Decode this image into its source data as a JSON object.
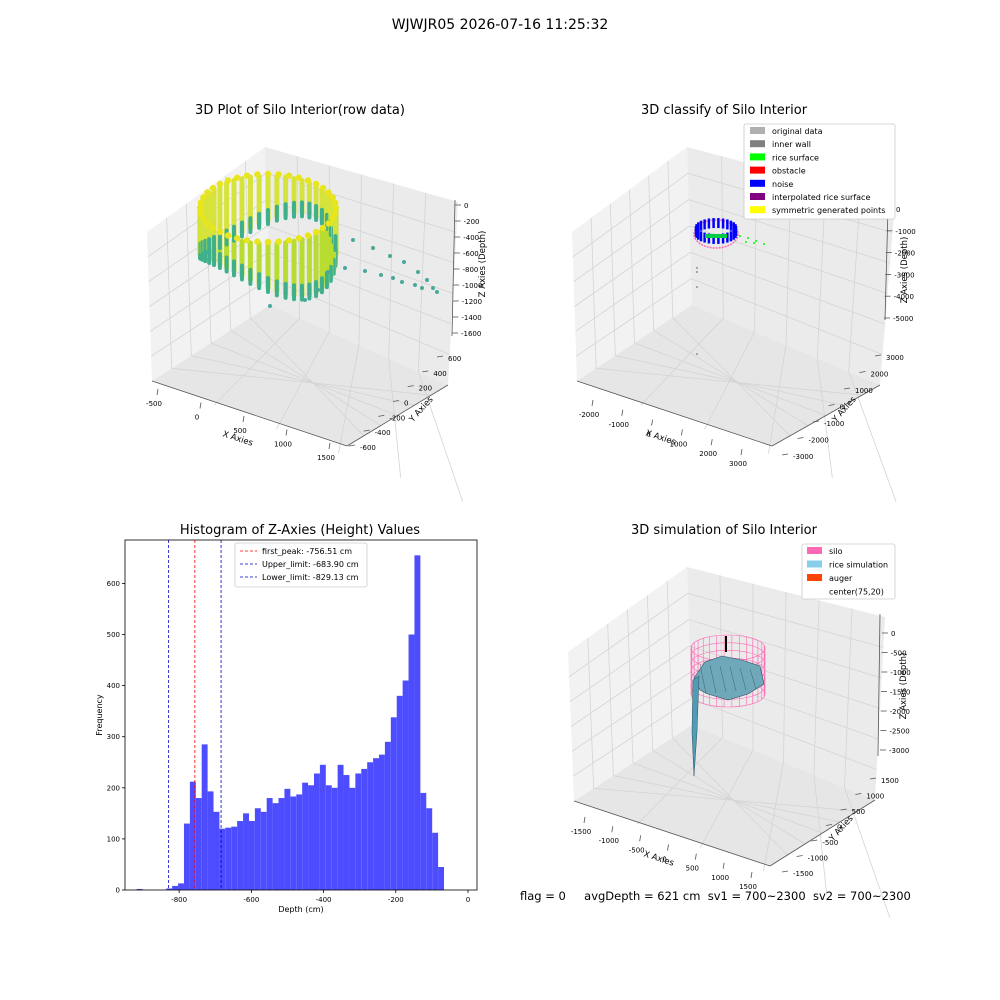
{
  "suptitle": "WJWJR05 2026-07-16 11:25:32",
  "footer": {
    "flag": "flag = 0",
    "avg_depth": "avgDepth = 621 cm",
    "sv1": "sv1 = 700~2300",
    "sv2": "sv2 = 700~2300"
  },
  "colors": {
    "hist_bar": "#4d4dff",
    "peak_line": "#ff0000",
    "limit_line": "#0000cc",
    "silo": "#ff69b4",
    "rice_sim": "#87ceeb",
    "auger": "#ff4500"
  },
  "panels": {
    "raw": {
      "title": "3D Plot of Silo Interior(row data)",
      "xlabel": "X Axies",
      "ylabel": "Y Axies",
      "zlabel": "Z Axies (Depth)",
      "xticks": [
        "-500",
        "0",
        "500",
        "1000",
        "1500"
      ],
      "yticks": [
        "-600",
        "-400",
        "-200",
        "0",
        "200",
        "400",
        "600"
      ],
      "zticks": [
        "0",
        "-200",
        "-400",
        "-600",
        "-800",
        "-1000",
        "-1200",
        "-1400",
        "-1600"
      ]
    },
    "classify": {
      "title": "3D classify of Silo Interior",
      "xlabel": "X Axies",
      "ylabel": "Y Axies",
      "zlabel": "Z Axies (Depth)",
      "xticks": [
        "-2000",
        "-1000",
        "0",
        "1000",
        "2000",
        "3000"
      ],
      "yticks": [
        "-3000",
        "-2000",
        "-1000",
        "0",
        "1000",
        "2000",
        "3000"
      ],
      "zticks": [
        "0",
        "-1000",
        "-2000",
        "-3000",
        "-4000",
        "-5000"
      ],
      "legend": [
        {
          "label": "original data",
          "color": "#b0b0b0"
        },
        {
          "label": "inner wall",
          "color": "#808080"
        },
        {
          "label": "rice surface",
          "color": "#00ff00"
        },
        {
          "label": "obstacle",
          "color": "#ff0000"
        },
        {
          "label": "noise",
          "color": "#0000ff"
        },
        {
          "label": "interpolated rice surface",
          "color": "#800080"
        },
        {
          "label": "symmetric generated points",
          "color": "#ffff00"
        }
      ]
    },
    "simulation": {
      "title": "3D simulation of Silo Interior",
      "xlabel": "X Axies",
      "ylabel": "Y Axies",
      "zlabel": "Z Axies (Depth)",
      "xticks": [
        "-1500",
        "-1000",
        "-500",
        "0",
        "500",
        "1000",
        "1500"
      ],
      "yticks": [
        "-1500",
        "-1000",
        "-500",
        "0",
        "500",
        "1000",
        "1500"
      ],
      "zticks": [
        "0",
        "-500",
        "-1000",
        "-1500",
        "-2000",
        "-2500",
        "-3000"
      ],
      "legend": [
        {
          "label": "silo",
          "color": "#ff69b4"
        },
        {
          "label": "rice simulation",
          "color": "#87ceeb"
        },
        {
          "label": "auger",
          "color": "#ff4500"
        },
        {
          "label": "center(75,20)",
          "color": ""
        }
      ]
    }
  },
  "chart_data": [
    {
      "type": "bar",
      "title": "Histogram of Z-Axies (Height) Values",
      "xlabel": "Depth (cm)",
      "ylabel": "Frequency",
      "xlim": [
        -950,
        25
      ],
      "ylim": [
        0,
        685
      ],
      "xticks": [
        -800,
        -600,
        -400,
        -200,
        0
      ],
      "yticks": [
        0,
        100,
        200,
        300,
        400,
        500,
        600
      ],
      "bin_width": 16.37,
      "bin_start": -934,
      "values": [
        0,
        2,
        0,
        0,
        0,
        0,
        3,
        8,
        13,
        130,
        212,
        180,
        285,
        193,
        153,
        120,
        122,
        124,
        135,
        150,
        135,
        160,
        153,
        180,
        170,
        180,
        198,
        183,
        187,
        210,
        205,
        228,
        245,
        205,
        200,
        245,
        225,
        200,
        228,
        237,
        250,
        258,
        265,
        290,
        338,
        380,
        410,
        500,
        655,
        190,
        160,
        112,
        45
      ],
      "vlines": [
        {
          "label": "first_peak: -756.51 cm",
          "x": -756.51,
          "color": "#ff0000"
        },
        {
          "label": "Upper_limit: -683.90 cm",
          "x": -683.9,
          "color": "#0000cc"
        },
        {
          "label": "Lower_limit: -829.13 cm",
          "x": -829.13,
          "color": "#0000cc"
        }
      ],
      "legend_position": "top-center"
    }
  ]
}
